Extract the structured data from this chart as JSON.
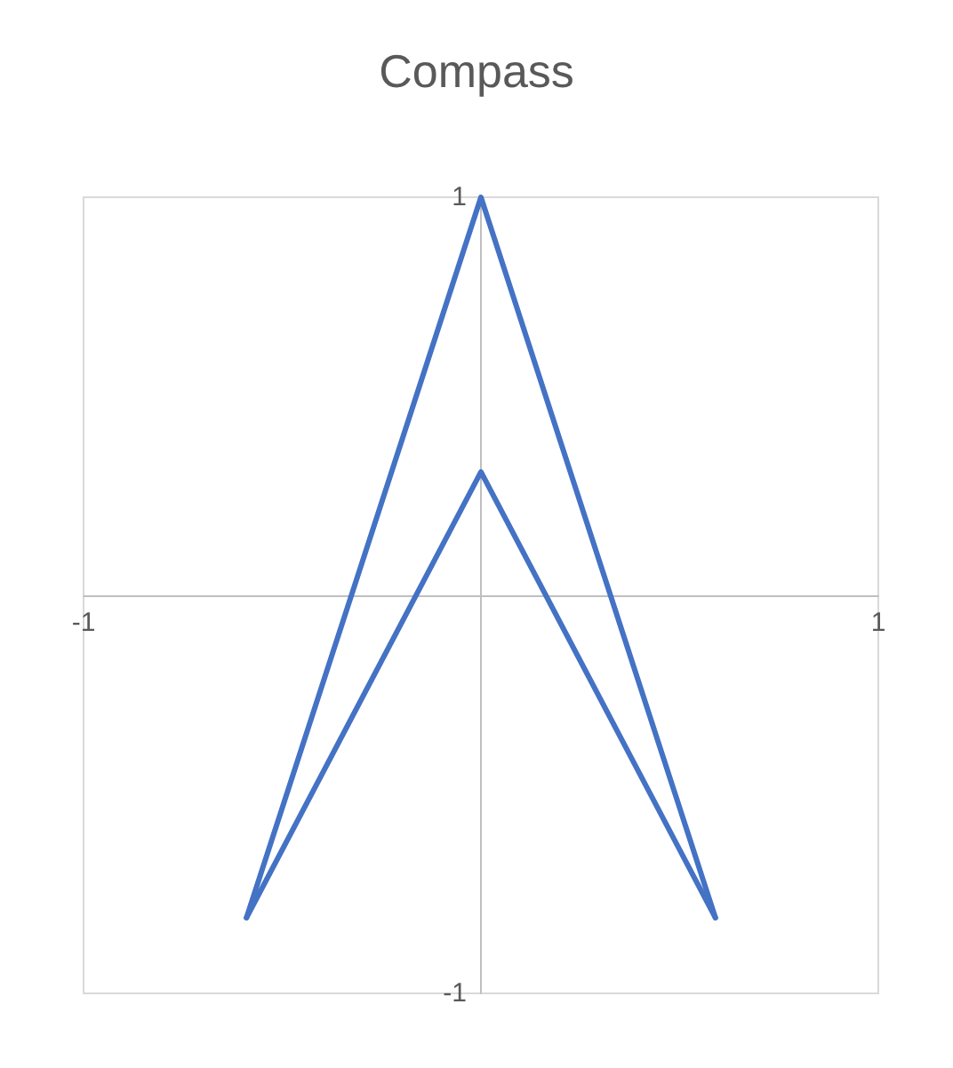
{
  "chart_data": {
    "type": "line",
    "title": "Compass",
    "series": [
      {
        "color": "#4472c4",
        "x": [
          -0.59,
          0,
          0.59
        ],
        "values": [
          -0.81,
          1,
          -0.81
        ]
      },
      {
        "color": "#4472c4",
        "x": [
          -0.59,
          0,
          0.59
        ],
        "values": [
          -0.81,
          0.31,
          -0.81
        ]
      }
    ],
    "xlim": [
      -1,
      1
    ],
    "xticks": [
      -1,
      1
    ],
    "ylim": [
      -1,
      1
    ],
    "yticks": [
      -1,
      1
    ],
    "marker": "none",
    "line_style": "solid"
  }
}
